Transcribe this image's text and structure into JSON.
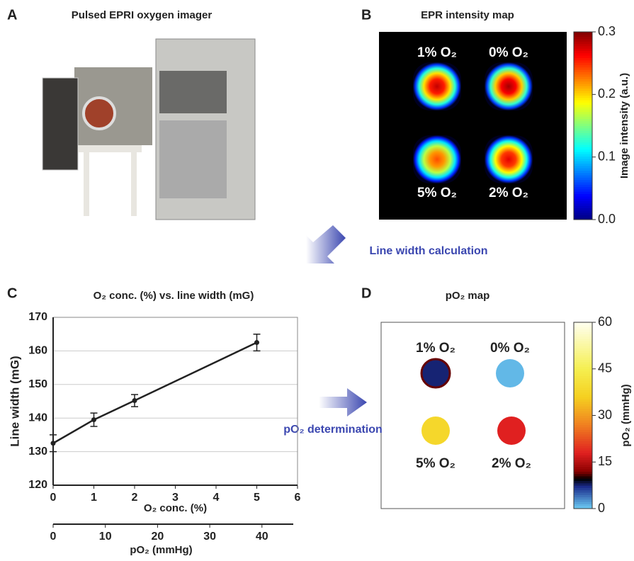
{
  "panels": {
    "A": {
      "letter": "A",
      "title": "Pulsed EPRI oxygen imager"
    },
    "B": {
      "letter": "B",
      "title": "EPR intensity map",
      "spots": [
        {
          "label": "1% O₂",
          "intensity": 0.28
        },
        {
          "label": "0% O₂",
          "intensity": 0.29
        },
        {
          "label": "5% O₂",
          "intensity": 0.24
        },
        {
          "label": "2% O₂",
          "intensity": 0.27
        }
      ],
      "colorbar": {
        "label": "Image intensity (a.u.)",
        "lim": [
          0,
          0.3
        ],
        "ticks": [
          {
            "value": 0,
            "label": "0.0"
          },
          0.1,
          0.2,
          0.3
        ]
      }
    },
    "D": {
      "letter": "D",
      "title": "pO₂ map",
      "spots": [
        {
          "label": "1% O₂",
          "po2": 7.6
        },
        {
          "label": "0% O₂",
          "po2": 1
        },
        {
          "label": "5% O₂",
          "po2": 38
        },
        {
          "label": "2% O₂",
          "po2": 18
        }
      ],
      "colorbar": {
        "label": "pO₂ (mmHg)",
        "lim": [
          0,
          60
        ],
        "ticks": [
          0,
          15,
          30,
          45,
          60
        ]
      }
    },
    "C": {
      "letter": "C"
    }
  },
  "arrows": {
    "line_width": "Line width calculation",
    "po2": "pO₂ determination"
  },
  "chart_data": {
    "type": "line",
    "title": "O₂ conc. (%) vs. line width (mG)",
    "x_label": "O₂ conc. (%)",
    "y_label": "Line width (mG)",
    "x": [
      0,
      1,
      2,
      5
    ],
    "values": [
      132.5,
      139.5,
      145.2,
      162.5
    ],
    "errors": [
      2.5,
      2,
      1.8,
      2.5
    ],
    "color": "#222222",
    "xlim": [
      0,
      6
    ],
    "xticks": [
      0,
      1,
      2,
      3,
      4,
      5,
      6
    ],
    "ylim": [
      120,
      170
    ],
    "yticks": [
      120,
      130,
      140,
      150,
      160,
      170
    ],
    "grid": true,
    "x2_label": "pO₂ (mmHg)",
    "x2lim": [
      0,
      46
    ],
    "x2ticks": [
      0,
      10,
      20,
      30,
      40
    ]
  }
}
